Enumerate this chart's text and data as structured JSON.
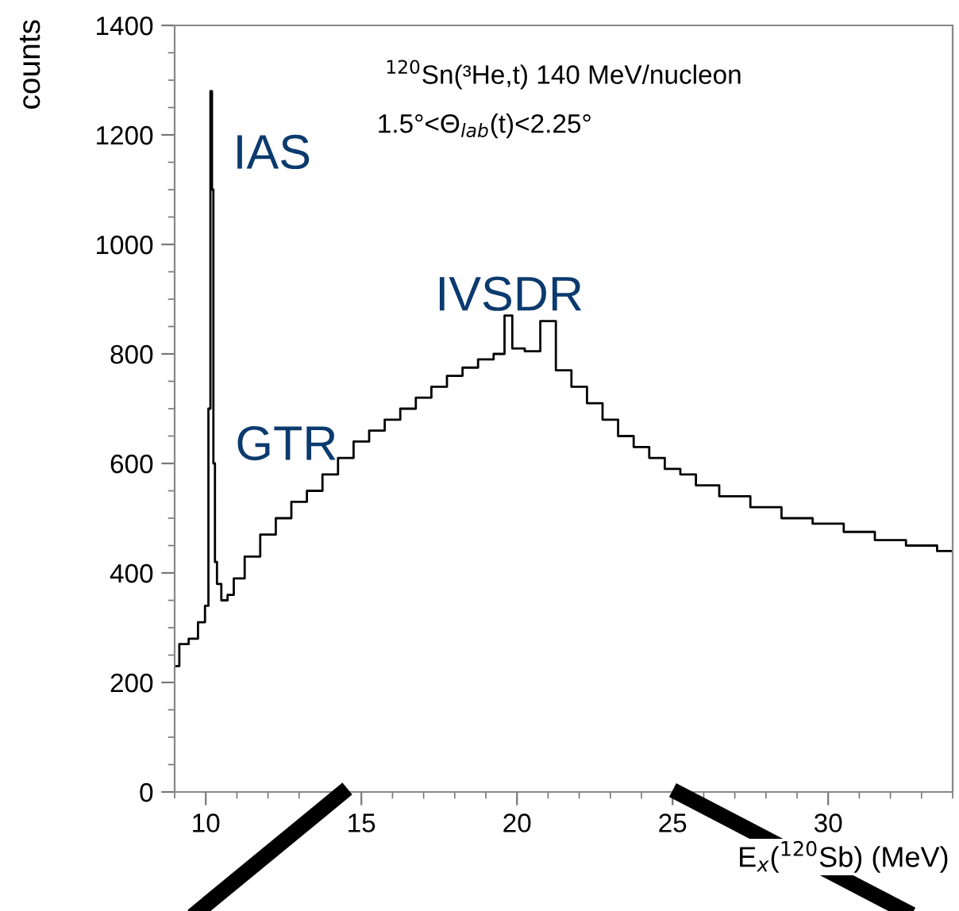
{
  "chart_data": {
    "type": "step",
    "title": "$^{120}$Sn(³He,t) 140 MeV/nucleon",
    "subtitle": "1.5°<Θ$_{lab}$(t)<2.25°",
    "xlabel": "E$_{x}$($^{120}$Sb) (MeV)",
    "ylabel": "counts",
    "x": [
      9.0,
      9.3,
      9.6,
      9.9,
      10.05,
      10.12,
      10.18,
      10.22,
      10.27,
      10.32,
      10.4,
      10.6,
      10.8,
      11.0,
      11.5,
      12.0,
      12.5,
      13.0,
      13.5,
      14.0,
      14.5,
      15.0,
      15.5,
      16.0,
      16.5,
      17.0,
      17.5,
      18.0,
      18.5,
      19.0,
      19.5,
      19.7,
      20.0,
      20.5,
      21.0,
      21.5,
      22.0,
      22.5,
      23.0,
      23.5,
      24.0,
      24.5,
      25.0,
      25.5,
      26.0,
      27.0,
      28.0,
      29.0,
      30.0,
      31.0,
      32.0,
      33.0,
      34.0
    ],
    "values": [
      230,
      270,
      280,
      310,
      340,
      700,
      1280,
      1100,
      600,
      420,
      380,
      350,
      360,
      390,
      430,
      470,
      500,
      530,
      550,
      580,
      610,
      640,
      660,
      680,
      700,
      720,
      740,
      760,
      775,
      790,
      800,
      870,
      810,
      805,
      860,
      770,
      740,
      710,
      680,
      650,
      630,
      610,
      590,
      580,
      560,
      540,
      520,
      500,
      490,
      475,
      460,
      450,
      440
    ],
    "color": "#000000",
    "xlim": [
      9,
      34
    ],
    "xticks": [
      10,
      15,
      20,
      25,
      30
    ],
    "ylim": [
      0,
      1400
    ],
    "yticks": [
      0,
      200,
      400,
      600,
      800,
      1000,
      1200,
      1400
    ],
    "annotations": [
      "IAS",
      "GTR",
      "IVSDR"
    ]
  }
}
